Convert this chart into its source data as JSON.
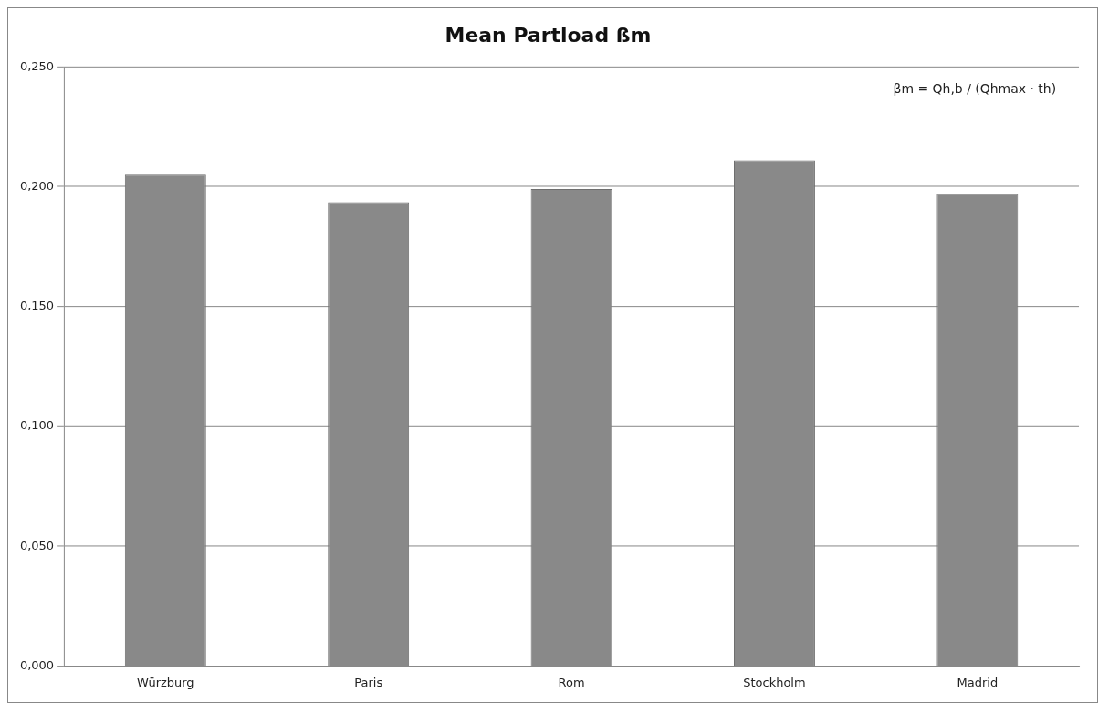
{
  "chart_data": {
    "type": "bar",
    "title": "Mean Partload ßm",
    "categories": [
      "Würzburg",
      "Paris",
      "Rom",
      "Stockholm",
      "Madrid"
    ],
    "values": [
      0.205,
      0.1935,
      0.199,
      0.211,
      0.197
    ],
    "color": "#898989",
    "ylim": [
      0,
      0.25
    ],
    "yticks": [
      {
        "value": 0,
        "label": "0,000"
      },
      {
        "value": 0.05,
        "label": "0,050"
      },
      {
        "value": 0.1,
        "label": "0,100"
      },
      {
        "value": 0.15,
        "label": "0,150"
      },
      {
        "value": 0.2,
        "label": "0,200"
      },
      {
        "value": 0.25,
        "label": "0,250"
      }
    ],
    "grid": "y",
    "annotations": [
      "βm = Qh,b / (Qhmax · th)"
    ]
  }
}
